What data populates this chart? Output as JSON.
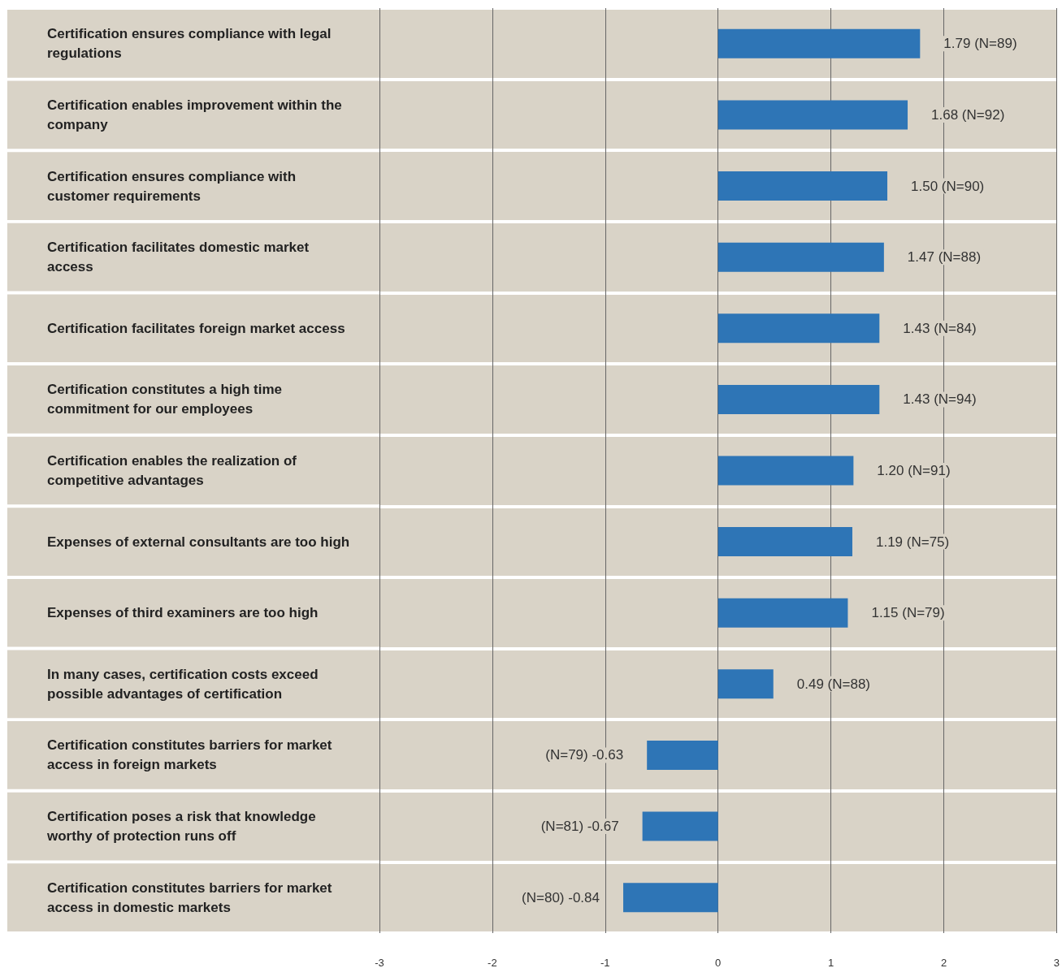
{
  "chart_data": {
    "type": "bar",
    "orientation": "horizontal",
    "categories": [
      "Certification ensures compliance with legal regulations",
      "Certification enables improvement within the company",
      "Certification ensures compliance with customer requirements",
      "Certification facilitates domestic market access",
      "Certification facilitates foreign market access",
      "Certification constitutes a high time commitment for our employees",
      "Certification enables the realization of competitive advantages",
      "Expenses of external consultants are too high",
      "Expenses of third examiners are too high",
      "In many cases, certification costs exceed possible advantages of certification",
      "Certification constitutes barriers for market access in foreign markets",
      "Certification poses a risk that knowledge worthy of protection runs off",
      "Certification constitutes barriers for market access in domestic markets"
    ],
    "values": [
      1.79,
      1.68,
      1.5,
      1.47,
      1.43,
      1.43,
      1.2,
      1.19,
      1.15,
      0.49,
      -0.63,
      -0.67,
      -0.84
    ],
    "value_labels": [
      "1.79 (N=89)",
      "1.68 (N=92)",
      "1.50 (N=90)",
      "1.47 (N=88)",
      "1.43 (N=84)",
      "1.43 (N=94)",
      "1.20 (N=91)",
      "1.19 (N=75)",
      "1.15 (N=79)",
      "0.49 (N=88)",
      "(N=79) -0.63",
      "(N=81) -0.67",
      "(N=80) -0.84"
    ],
    "color": "#2e75b6",
    "xlim": [
      -3,
      3
    ],
    "xticks": [
      -3,
      -2,
      -1,
      0,
      1,
      2,
      3
    ],
    "grid": "x"
  }
}
